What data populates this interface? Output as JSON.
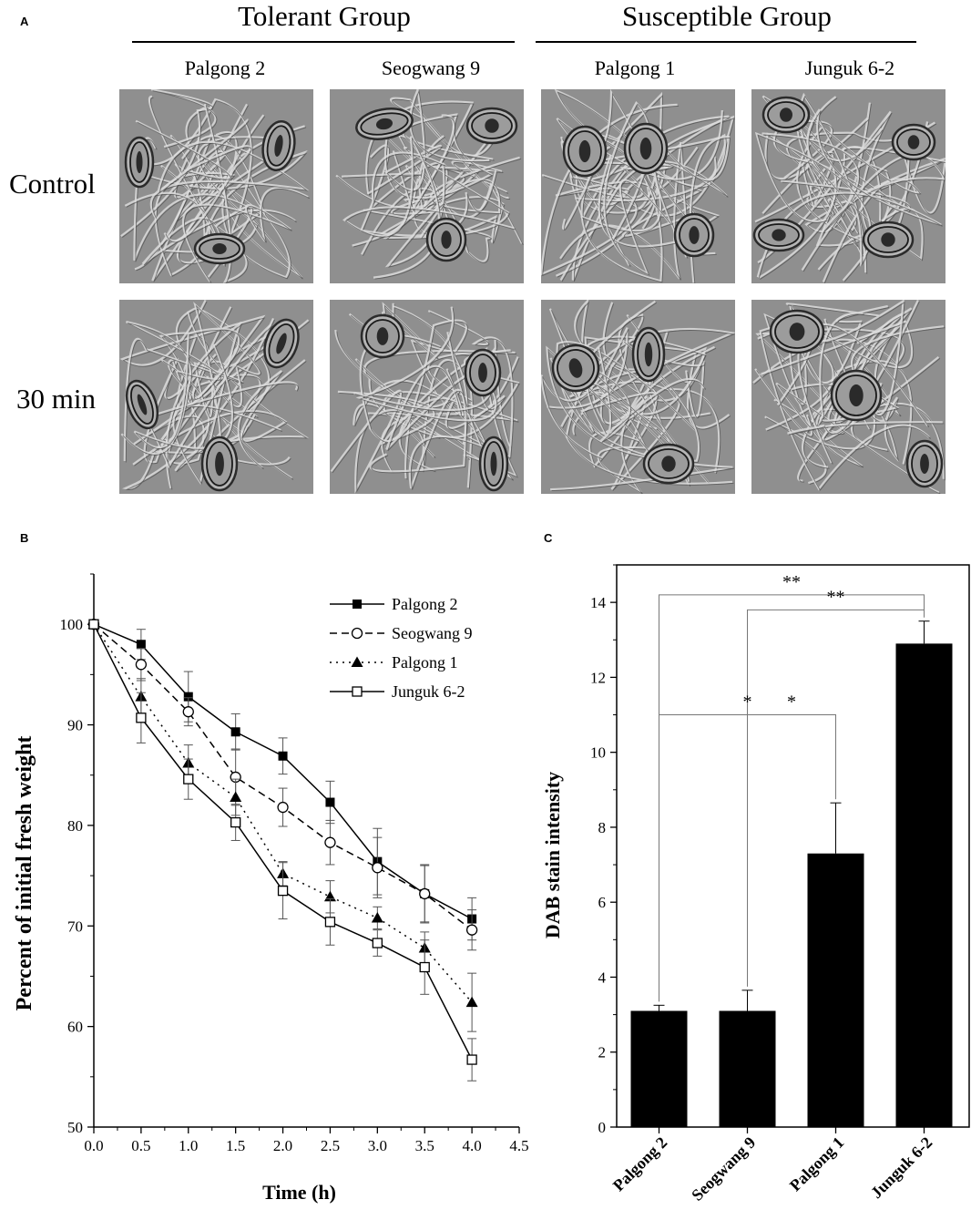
{
  "panelA": {
    "letter": "A",
    "groups": [
      "Tolerant Group",
      "Susceptible Group"
    ],
    "cultivars": [
      "Palgong 2",
      "Seogwang 9",
      "Palgong 1",
      "Junguk 6-2"
    ],
    "rows": [
      "Control",
      "30 min"
    ]
  },
  "chart_data": [
    {
      "panel": "B",
      "type": "line",
      "xlabel": "Time (h)",
      "ylabel": "Percent of initial fresh weight",
      "xlim": [
        0.0,
        4.5
      ],
      "ylim": [
        50,
        105
      ],
      "xticks": [
        "0.0",
        "0.5",
        "1.0",
        "1.5",
        "2.0",
        "2.5",
        "3.0",
        "3.5",
        "4.0",
        "4.5"
      ],
      "yticks": [
        "50",
        "60",
        "70",
        "80",
        "90",
        "100"
      ],
      "x": [
        0,
        0.5,
        1.0,
        1.5,
        2.0,
        2.5,
        3.0,
        3.5,
        4.0
      ],
      "legend_position": "top-right",
      "series": [
        {
          "name": "Palgong 2",
          "marker": "filled-square",
          "line": "solid",
          "values": [
            100,
            98.0,
            92.8,
            89.3,
            86.9,
            82.3,
            76.4,
            73.2,
            70.7
          ],
          "errors": [
            0,
            1.5,
            2.5,
            1.8,
            1.8,
            2.1,
            3.3,
            2.8,
            2.1
          ]
        },
        {
          "name": "Seogwang 9",
          "marker": "open-circle",
          "line": "dashed",
          "values": [
            100,
            96.0,
            91.3,
            84.8,
            81.8,
            78.3,
            75.8,
            73.2,
            69.6
          ],
          "errors": [
            0,
            1.6,
            1.4,
            2.8,
            1.9,
            2.2,
            3.0,
            2.9,
            2.0
          ]
        },
        {
          "name": "Palgong 1",
          "marker": "filled-triangle",
          "line": "dotted",
          "values": [
            100,
            92.8,
            86.2,
            82.8,
            75.2,
            72.9,
            70.8,
            67.8,
            62.4
          ],
          "errors": [
            0,
            1.8,
            1.8,
            1.8,
            1.2,
            1.6,
            1.1,
            1.6,
            2.9
          ]
        },
        {
          "name": "Junguk 6-2",
          "marker": "open-square",
          "line": "solid",
          "values": [
            100,
            90.7,
            84.6,
            80.3,
            73.5,
            70.4,
            68.3,
            65.9,
            56.7
          ],
          "errors": [
            0,
            2.5,
            2.0,
            1.8,
            2.8,
            2.3,
            1.3,
            2.7,
            2.1
          ]
        }
      ]
    },
    {
      "panel": "C",
      "type": "bar",
      "ylabel": "DAB stain intensity",
      "ylim": [
        0,
        15
      ],
      "yticks": [
        "0",
        "2",
        "4",
        "6",
        "8",
        "10",
        "12",
        "14"
      ],
      "categories": [
        "Palgong 2",
        "Seogwang 9",
        "Palgong 1",
        "Junguk 6-2"
      ],
      "values": [
        3.1,
        3.1,
        7.3,
        12.9
      ],
      "errors": [
        0.15,
        0.55,
        1.35,
        0.6
      ],
      "bar_color": "#000000",
      "significance": [
        {
          "from": 0,
          "to": 3,
          "label": "**",
          "level": 14.2
        },
        {
          "from": 1,
          "to": 3,
          "label": "**",
          "level": 13.8
        },
        {
          "from": 0,
          "to": 2,
          "label": "*",
          "level": 11.0
        },
        {
          "from": 1,
          "to": 2,
          "label": "*",
          "level": 11.0
        }
      ]
    }
  ],
  "panel_letters": {
    "b": "B",
    "c": "C"
  }
}
